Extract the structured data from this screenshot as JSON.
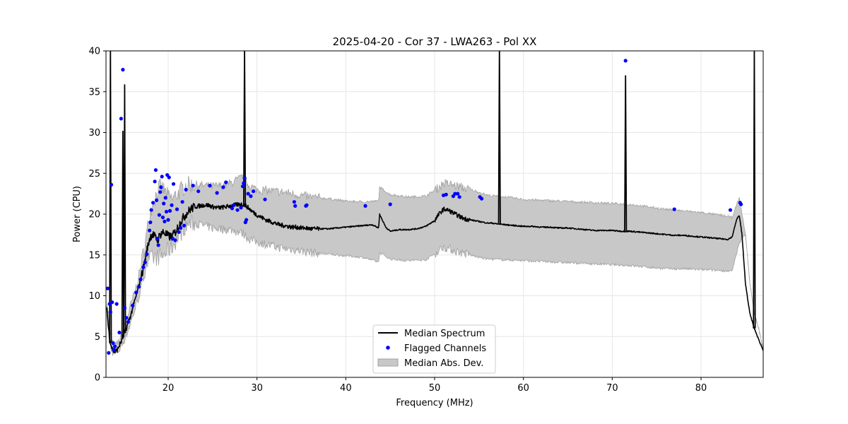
{
  "chart_data": {
    "type": "line",
    "title": "2025-04-20 - Cor 37 - LWA263 - Pol XX",
    "xlabel": "Frequency (MHz)",
    "ylabel": "Power (CPU)",
    "xlim": [
      13,
      87
    ],
    "ylim": [
      0,
      40
    ],
    "xticks": [
      20,
      30,
      40,
      50,
      60,
      70,
      80
    ],
    "yticks": [
      0,
      5,
      10,
      15,
      20,
      25,
      30,
      35,
      40
    ],
    "grid": true,
    "legend_placement": "bottom-center",
    "legend": [
      "Median Spectrum",
      "Flagged Channels",
      "Median Abs. Dev."
    ],
    "colors": {
      "median": "#000000",
      "flagged": "#0000ff",
      "mad": "#c8c8c8",
      "mad_edge": "#a0a0a0"
    },
    "median_spectrum": {
      "x": [
        13.1,
        13.3,
        13.5,
        13.8,
        14.0,
        14.3,
        14.5,
        14.8,
        15.0,
        15.3,
        15.5,
        15.8,
        16.0,
        16.3,
        16.6,
        17.0,
        17.3,
        17.6,
        17.9,
        18.2,
        18.5,
        18.8,
        19.1,
        19.4,
        19.7,
        20.0,
        20.4,
        20.8,
        21.2,
        21.6,
        22.0,
        22.5,
        23.0,
        23.5,
        24.0,
        24.5,
        25.0,
        25.5,
        26.0,
        26.5,
        27.0,
        27.5,
        28.0,
        28.5,
        29.0,
        29.5,
        30.0,
        30.5,
        31.0,
        31.5,
        32.0,
        32.5,
        33.0,
        33.5,
        34.0,
        34.5,
        35.0,
        35.5,
        36.0,
        36.5,
        37.0,
        38.0,
        39.0,
        40.0,
        41.0,
        42.0,
        43.0,
        43.7,
        43.8,
        44.5,
        45.0,
        46.0,
        47.0,
        48.0,
        49.0,
        50.0,
        50.5,
        51.0,
        51.5,
        52.0,
        52.5,
        53.0,
        53.5,
        54.0,
        54.5,
        55.0,
        55.5,
        56.0,
        56.5,
        57.0,
        58.0,
        59.0,
        60.0,
        61.0,
        62.0,
        63.0,
        64.0,
        65.0,
        66.0,
        67.0,
        68.0,
        69.0,
        70.0,
        71.0,
        72.0,
        73.0,
        74.0,
        75.0,
        76.0,
        77.0,
        78.0,
        79.0,
        80.0,
        81.0,
        82.0,
        83.0,
        83.5,
        84.0,
        84.3,
        84.6,
        85.0,
        85.5,
        86.0,
        86.5,
        87.0
      ],
      "y": [
        8.5,
        5.8,
        4.2,
        3.2,
        3.1,
        3.4,
        3.9,
        4.6,
        5.2,
        6.0,
        6.8,
        7.6,
        8.5,
        9.6,
        10.8,
        12.5,
        13.8,
        15.5,
        17.0,
        17.6,
        17.2,
        16.8,
        17.5,
        17.8,
        17.6,
        17.3,
        17.2,
        17.8,
        18.6,
        19.4,
        20.0,
        20.6,
        20.9,
        21.0,
        21.1,
        21.1,
        20.9,
        20.8,
        20.8,
        20.9,
        21.0,
        21.1,
        21.2,
        21.2,
        20.8,
        20.3,
        19.9,
        19.6,
        19.3,
        19.1,
        18.9,
        18.7,
        18.6,
        18.5,
        18.4,
        18.4,
        18.3,
        18.3,
        18.2,
        18.2,
        18.2,
        18.2,
        18.3,
        18.4,
        18.5,
        18.6,
        18.7,
        18.3,
        20.0,
        18.4,
        17.9,
        18.1,
        18.1,
        18.2,
        18.5,
        19.2,
        20.0,
        20.6,
        20.5,
        20.2,
        19.9,
        19.6,
        19.4,
        19.3,
        19.2,
        19.1,
        19.0,
        18.9,
        18.9,
        18.8,
        18.7,
        18.6,
        18.5,
        18.5,
        18.4,
        18.4,
        18.3,
        18.3,
        18.2,
        18.1,
        18.0,
        18.0,
        18.0,
        17.9,
        17.9,
        17.8,
        17.7,
        17.6,
        17.5,
        17.4,
        17.4,
        17.3,
        17.2,
        17.1,
        17.0,
        16.9,
        17.2,
        19.3,
        19.9,
        17.6,
        11.5,
        7.8,
        6.0,
        4.6,
        3.3
      ]
    },
    "mad_band": {
      "x": [
        13.1,
        13.5,
        14.0,
        14.5,
        15.0,
        15.5,
        16.0,
        16.5,
        17.0,
        17.5,
        18.0,
        18.5,
        19.0,
        19.5,
        20.0,
        20.5,
        21.0,
        21.5,
        22.0,
        23.0,
        24.0,
        25.0,
        26.0,
        27.0,
        28.0,
        28.5,
        29.0,
        30.0,
        31.0,
        32.0,
        33.0,
        34.0,
        35.0,
        36.0,
        38.0,
        40.0,
        42.0,
        43.7,
        43.8,
        45.0,
        47.0,
        49.0,
        50.5,
        51.0,
        52.0,
        53.0,
        54.0,
        55.0,
        56.0,
        58.0,
        60.0,
        62.0,
        64.0,
        66.0,
        68.0,
        70.0,
        72.0,
        74.0,
        76.0,
        78.0,
        80.0,
        82.0,
        83.5,
        84.3,
        85.0,
        85.5,
        86.0,
        86.5,
        87.0
      ],
      "upper": [
        9.5,
        5.0,
        3.7,
        4.4,
        6.0,
        7.8,
        9.6,
        11.5,
        14.0,
        17.0,
        20.5,
        22.0,
        23.3,
        23.0,
        22.1,
        21.8,
        22.5,
        23.0,
        23.6,
        23.6,
        23.5,
        23.4,
        23.5,
        23.8,
        24.3,
        24.6,
        23.6,
        23.0,
        22.9,
        22.8,
        22.7,
        22.5,
        22.3,
        22.1,
        21.9,
        21.6,
        21.5,
        21.6,
        23.3,
        22.4,
        22.1,
        22.2,
        23.3,
        23.8,
        23.6,
        23.3,
        23.0,
        22.7,
        22.3,
        22.1,
        21.8,
        21.7,
        21.6,
        21.5,
        21.4,
        21.3,
        21.2,
        20.9,
        20.6,
        20.4,
        20.2,
        19.9,
        19.6,
        22.0,
        17.6,
        11.5,
        7.8,
        6.0,
        3.3
      ],
      "lower": [
        7.5,
        3.6,
        2.8,
        3.4,
        4.5,
        5.8,
        7.4,
        9.2,
        11.0,
        14.0,
        14.5,
        14.6,
        14.8,
        14.9,
        15.6,
        16.0,
        17.0,
        17.8,
        18.7,
        18.9,
        18.6,
        18.3,
        18.2,
        18.1,
        17.8,
        17.6,
        17.0,
        16.6,
        16.3,
        16.0,
        15.8,
        15.7,
        15.5,
        15.3,
        15.1,
        14.9,
        14.7,
        14.1,
        15.3,
        14.5,
        14.3,
        14.4,
        15.5,
        16.0,
        15.6,
        15.3,
        15.0,
        14.7,
        14.5,
        14.4,
        14.3,
        14.2,
        14.1,
        14.0,
        13.9,
        13.8,
        13.7,
        13.5,
        13.3,
        13.3,
        13.2,
        13.1,
        13.0,
        16.4,
        17.6,
        11.5,
        7.8,
        6.0,
        3.3
      ]
    },
    "rfi_spikes": [
      {
        "x": 13.5,
        "peak": 40.5
      },
      {
        "x": 14.9,
        "peak": 30.2
      },
      {
        "x": 15.1,
        "peak": 35.9
      },
      {
        "x": 28.6,
        "peak": 40.5
      },
      {
        "x": 57.3,
        "peak": 40.5
      },
      {
        "x": 71.5,
        "peak": 37.0
      },
      {
        "x": 86.0,
        "peak": 40.5
      }
    ],
    "flagged_channels": {
      "x": [
        13.2,
        13.3,
        13.4,
        13.5,
        13.6,
        13.7,
        13.8,
        13.9,
        14.0,
        14.2,
        14.5,
        14.7,
        14.9,
        15.1,
        15.3,
        15.5,
        16.0,
        16.4,
        16.7,
        16.9,
        17.2,
        17.4,
        17.6,
        17.9,
        18.0,
        18.1,
        18.3,
        18.5,
        18.6,
        18.7,
        18.8,
        18.9,
        19.0,
        19.1,
        19.2,
        19.3,
        19.4,
        19.5,
        19.6,
        19.7,
        19.8,
        19.9,
        20.0,
        20.1,
        20.2,
        20.4,
        20.5,
        20.6,
        20.8,
        21.0,
        21.2,
        21.4,
        21.6,
        21.8,
        22.0,
        22.8,
        23.4,
        24.7,
        25.5,
        26.2,
        26.5,
        27.2,
        27.4,
        27.8,
        28.2,
        28.4,
        28.5,
        28.6,
        28.7,
        28.8,
        29.0,
        29.3,
        29.6,
        30.9,
        34.2,
        34.3,
        35.5,
        35.6,
        42.2,
        45.0,
        51.0,
        51.3,
        52.1,
        52.3,
        52.6,
        52.8,
        55.1,
        55.3,
        71.5,
        77.0,
        83.3,
        84.4,
        84.5
      ],
      "y": [
        10.9,
        3.0,
        9.0,
        8.0,
        23.6,
        9.2,
        4.2,
        3.4,
        3.8,
        9.0,
        5.5,
        31.7,
        37.7,
        8.5,
        7.3,
        6.8,
        8.8,
        10.4,
        11.1,
        12.0,
        13.5,
        14.1,
        15.1,
        18.0,
        19.0,
        20.5,
        21.4,
        24.0,
        25.4,
        21.7,
        17.0,
        16.2,
        19.9,
        22.7,
        23.3,
        24.6,
        19.6,
        21.3,
        19.1,
        22.0,
        20.3,
        24.8,
        19.3,
        24.5,
        20.4,
        21.1,
        17.0,
        23.7,
        16.8,
        20.6,
        17.8,
        18.3,
        21.5,
        18.6,
        23.0,
        23.5,
        22.8,
        23.5,
        22.6,
        23.3,
        23.9,
        20.7,
        21.1,
        20.5,
        20.8,
        23.4,
        23.8,
        24.4,
        19.0,
        19.3,
        22.5,
        22.2,
        22.8,
        21.8,
        21.5,
        21.0,
        21.0,
        21.1,
        21.0,
        21.2,
        22.3,
        22.4,
        22.2,
        22.5,
        22.5,
        22.1,
        22.1,
        21.9,
        38.8,
        20.6,
        20.5,
        21.4,
        21.2
      ]
    }
  }
}
